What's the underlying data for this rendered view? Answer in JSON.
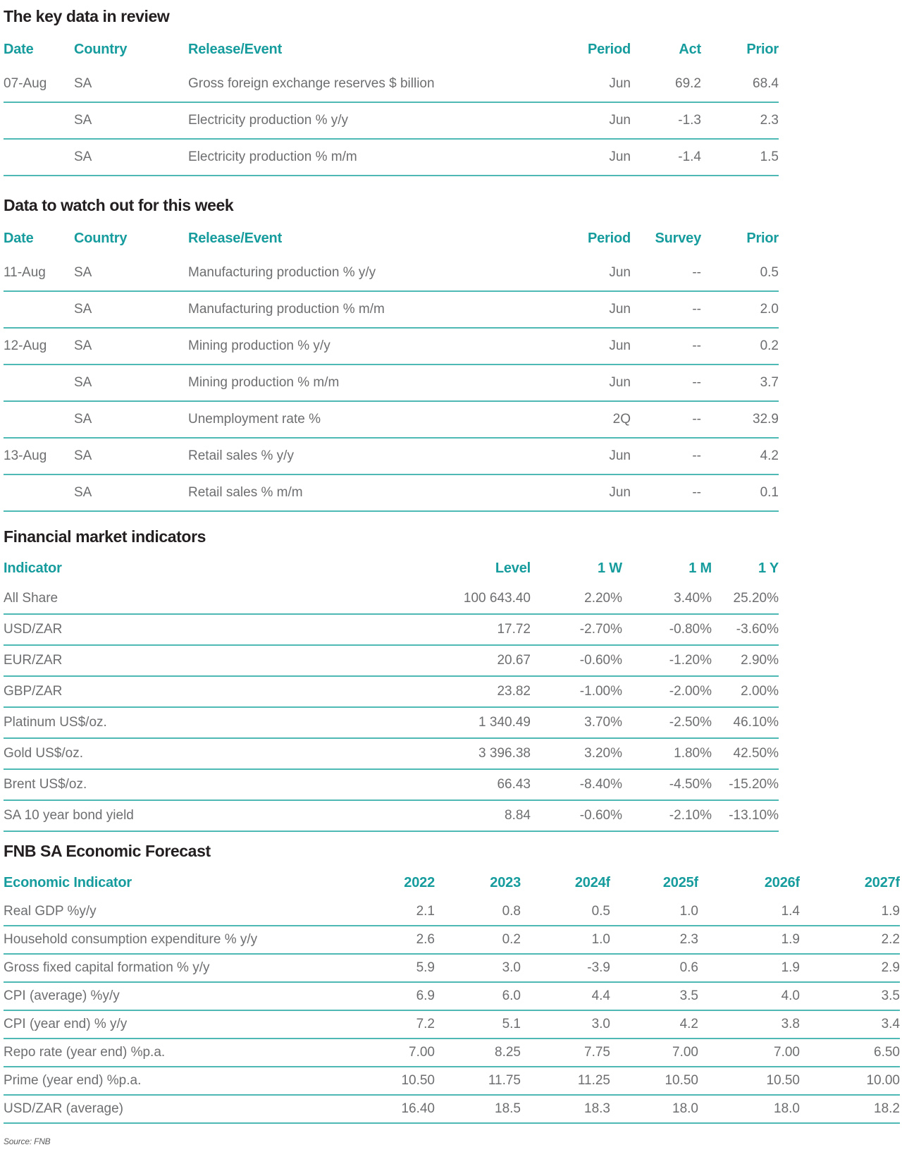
{
  "colors": {
    "accent_teal": "#179c9e",
    "rule_teal": "#4fb9b6",
    "title_dark": "#231f20",
    "body_gray": "#6d6e70"
  },
  "sections": [
    {
      "title": "The key data in review",
      "columns": [
        "Date",
        "Country",
        "Release/Event",
        "Period",
        "Act",
        "Prior"
      ],
      "rows": [
        [
          "07-Aug",
          "SA",
          "Gross foreign exchange reserves $ billion",
          "Jun",
          "69.2",
          "68.4"
        ],
        [
          "",
          "SA",
          "Electricity production % y/y",
          "Jun",
          "-1.3",
          "2.3"
        ],
        [
          "",
          "SA",
          "Electricity production % m/m",
          "Jun",
          "-1.4",
          "1.5"
        ]
      ]
    },
    {
      "title": "Data to watch out for this week",
      "columns": [
        "Date",
        "Country",
        "Release/Event",
        "Period",
        "Survey",
        "Prior"
      ],
      "rows": [
        [
          "11-Aug",
          "SA",
          "Manufacturing production % y/y",
          "Jun",
          "--",
          "0.5"
        ],
        [
          "",
          "SA",
          "Manufacturing production % m/m",
          "Jun",
          "--",
          "2.0"
        ],
        [
          "12-Aug",
          "SA",
          "Mining production % y/y",
          "Jun",
          "--",
          "0.2"
        ],
        [
          "",
          "SA",
          "Mining production % m/m",
          "Jun",
          "--",
          "3.7"
        ],
        [
          "",
          "SA",
          "Unemployment rate %",
          "2Q",
          "--",
          "32.9"
        ],
        [
          "13-Aug",
          "SA",
          "Retail sales % y/y",
          "Jun",
          "--",
          "4.2"
        ],
        [
          "",
          "SA",
          "Retail sales % m/m",
          "Jun",
          "--",
          "0.1"
        ]
      ]
    },
    {
      "title": "Financial market indicators",
      "columns": [
        "Indicator",
        "Level",
        "1 W",
        "1 M",
        "1 Y"
      ],
      "rows": [
        [
          "All Share",
          "100 643.40",
          "2.20%",
          "3.40%",
          "25.20%"
        ],
        [
          "USD/ZAR",
          "17.72",
          "-2.70%",
          "-0.80%",
          "-3.60%"
        ],
        [
          "EUR/ZAR",
          "20.67",
          "-0.60%",
          "-1.20%",
          "2.90%"
        ],
        [
          "GBP/ZAR",
          "23.82",
          "-1.00%",
          "-2.00%",
          "2.00%"
        ],
        [
          "Platinum US$/oz.",
          "1 340.49",
          "3.70%",
          "-2.50%",
          "46.10%"
        ],
        [
          "Gold US$/oz.",
          "3 396.38",
          "3.20%",
          "1.80%",
          "42.50%"
        ],
        [
          "Brent US$/oz.",
          "66.43",
          "-8.40%",
          "-4.50%",
          "-15.20%"
        ],
        [
          "SA 10 year bond yield",
          "8.84",
          "-0.60%",
          "-2.10%",
          "-13.10%"
        ]
      ]
    },
    {
      "title": "FNB SA Economic Forecast",
      "columns": [
        "Economic Indicator",
        "2022",
        "2023",
        "2024f",
        "2025f",
        "2026f",
        "2027f"
      ],
      "rows": [
        [
          "Real GDP %y/y",
          "2.1",
          "0.8",
          "0.5",
          "1.0",
          "1.4",
          "1.9"
        ],
        [
          "Household consumption expenditure % y/y",
          "2.6",
          "0.2",
          "1.0",
          "2.3",
          "1.9",
          "2.2"
        ],
        [
          "Gross fixed capital formation % y/y",
          "5.9",
          "3.0",
          "-3.9",
          "0.6",
          "1.9",
          "2.9"
        ],
        [
          "CPI (average) %y/y",
          "6.9",
          "6.0",
          "4.4",
          "3.5",
          "4.0",
          "3.5"
        ],
        [
          "CPI (year end) % y/y",
          "7.2",
          "5.1",
          "3.0",
          "4.2",
          "3.8",
          "3.4"
        ],
        [
          "Repo rate (year end) %p.a.",
          "7.00",
          "8.25",
          "7.75",
          "7.00",
          "7.00",
          "6.50"
        ],
        [
          "Prime (year end) %p.a.",
          "10.50",
          "11.75",
          "11.25",
          "10.50",
          "10.50",
          "10.00"
        ],
        [
          "USD/ZAR (average)",
          "16.40",
          "18.5",
          "18.3",
          "18.0",
          "18.0",
          "18.2"
        ]
      ]
    }
  ],
  "source_note": "Source: FNB"
}
